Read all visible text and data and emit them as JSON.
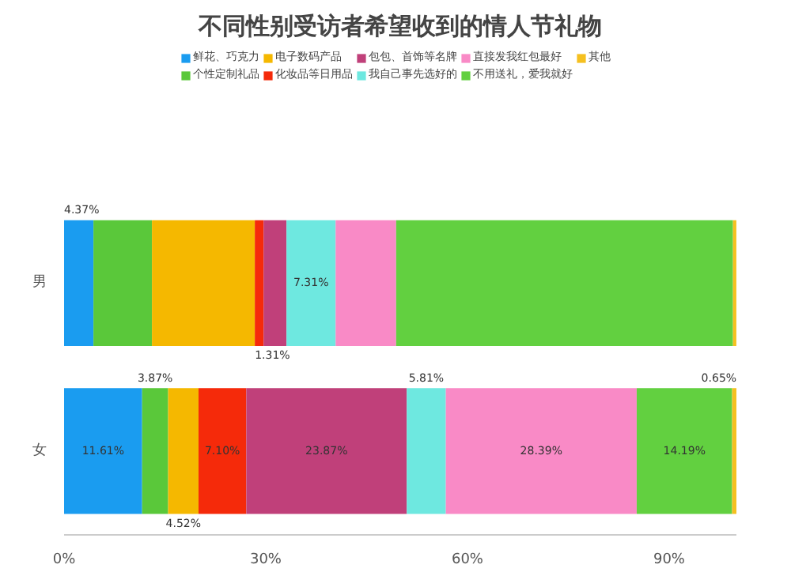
{
  "chart_data": {
    "type": "bar",
    "orientation": "horizontal",
    "stacked": true,
    "title": "不同性别受访者希望收到的情人节礼物",
    "categories": [
      "男",
      "女"
    ],
    "series": [
      {
        "name": "鲜花、巧克力",
        "color": "#1a9cf0",
        "values": [
          4.37,
          11.61
        ],
        "value_labels": [
          "4.37%",
          "11.61%"
        ]
      },
      {
        "name": "个性定制礼品",
        "color": "#5ac83a",
        "values": [
          8.7,
          3.87
        ],
        "value_labels": [
          null,
          "3.87%"
        ]
      },
      {
        "name": "电子数码产品",
        "color": "#f5b800",
        "values": [
          15.3,
          4.52
        ],
        "value_labels": [
          null,
          "4.52%"
        ]
      },
      {
        "name": "化妆品等日用品",
        "color": "#f52a0a",
        "values": [
          1.31,
          7.1
        ],
        "value_labels": [
          "1.31%",
          "7.10%"
        ]
      },
      {
        "name": "包包、首饰等名牌",
        "color": "#c0407a",
        "values": [
          3.4,
          23.87
        ],
        "value_labels": [
          null,
          "23.87%"
        ]
      },
      {
        "name": "我自己事先选好的",
        "color": "#6ee8e0",
        "values": [
          7.31,
          5.81
        ],
        "value_labels": [
          "7.31%",
          "5.81%"
        ]
      },
      {
        "name": "直接发我红包最好",
        "color": "#f98ac6",
        "values": [
          9.0,
          28.39
        ],
        "value_labels": [
          null,
          "28.39%"
        ]
      },
      {
        "name": "不用送礼，爱我就好",
        "color": "#62d040",
        "values": [
          50.1,
          14.19
        ],
        "value_labels": [
          null,
          "14.19%"
        ]
      },
      {
        "name": "其他",
        "color": "#f5c020",
        "values": [
          0.5,
          0.65
        ],
        "value_labels": [
          null,
          "0.65%"
        ]
      }
    ],
    "xlim": [
      0,
      100
    ],
    "xticks": [
      {
        "value": 0,
        "label": "0%"
      },
      {
        "value": 30,
        "label": "30%"
      },
      {
        "value": 60,
        "label": "60%"
      },
      {
        "value": 90,
        "label": "90%"
      }
    ],
    "grid": false,
    "legend": "top"
  }
}
